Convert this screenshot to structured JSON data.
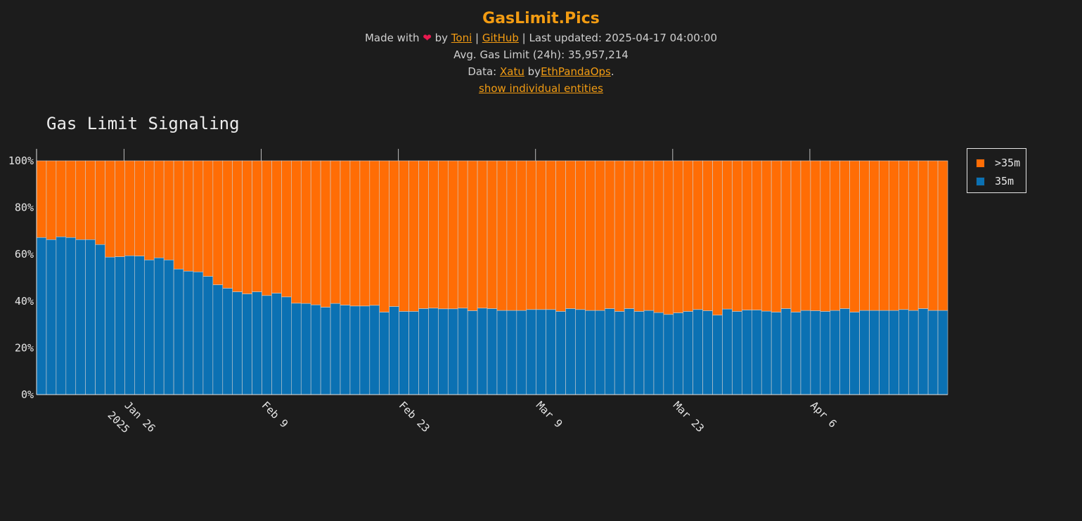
{
  "header": {
    "title": "GasLimit.Pics",
    "made_with": "Made with",
    "heart": "❤",
    "by": "by",
    "author": "Toni",
    "sep1": "|",
    "github": "GitHub",
    "last_updated": "| Last updated: 2025-04-17 04:00:00",
    "avg_label": "Avg. Gas Limit (24h): 35,957,214",
    "data_prefix": "Data:",
    "data_source": "Xatu",
    "data_by": "by",
    "data_org": "EthPandaOps",
    "data_suffix": ".",
    "toggle_link": "show individual entities"
  },
  "colors": {
    "over35m": "#ff6d05",
    "at35m": "#0b71b3",
    "background": "#1c1c1c",
    "accent": "#f39c12"
  },
  "chart_data": {
    "type": "bar",
    "stacked": true,
    "title": "Gas Limit Signaling",
    "start_date": "2025-01-17",
    "x_ticks": [
      {
        "date": "2025-01-26",
        "label": "Jan 26",
        "sub": "2025"
      },
      {
        "date": "2025-02-09",
        "label": "Feb 9",
        "sub": ""
      },
      {
        "date": "2025-02-23",
        "label": "Feb 23",
        "sub": ""
      },
      {
        "date": "2025-03-09",
        "label": "Mar 9",
        "sub": ""
      },
      {
        "date": "2025-03-23",
        "label": "Mar 23",
        "sub": ""
      },
      {
        "date": "2025-04-06",
        "label": "Apr 6",
        "sub": ""
      }
    ],
    "y_ticks": [
      "0%",
      "20%",
      "40%",
      "60%",
      "80%",
      "100%"
    ],
    "ylim": [
      0,
      100
    ],
    "legend": {
      "position": "top-right",
      "entries": [
        ">35m",
        "35m"
      ]
    },
    "series": [
      {
        "name": "35m",
        "color_key": "at35m",
        "values": [
          67.2,
          66.3,
          67.5,
          67.2,
          66.3,
          66.3,
          64.2,
          58.8,
          59.0,
          59.4,
          59.3,
          57.6,
          58.5,
          57.6,
          53.7,
          52.8,
          52.5,
          50.6,
          47.0,
          45.5,
          44.0,
          43.1,
          44.0,
          42.4,
          43.4,
          41.8,
          39.1,
          39.0,
          38.4,
          37.4,
          39.0,
          38.3,
          37.9,
          37.9,
          38.2,
          35.3,
          37.7,
          35.6,
          35.6,
          36.8,
          37.0,
          36.7,
          36.7,
          37.0,
          35.9,
          37.0,
          36.8,
          36.0,
          36.0,
          36.0,
          36.4,
          36.4,
          36.4,
          35.6,
          36.8,
          36.4,
          36.0,
          36.0,
          36.8,
          35.6,
          36.8,
          35.6,
          36.0,
          35.1,
          34.3,
          35.0,
          35.6,
          36.4,
          35.9,
          34.0,
          36.6,
          35.6,
          36.2,
          36.2,
          35.7,
          35.3,
          36.8,
          35.3,
          36.0,
          35.9,
          35.6,
          36.0,
          36.8,
          35.3,
          36.0,
          36.0,
          36.0,
          36.0,
          36.4,
          36.0,
          36.8,
          36.0,
          36.0
        ]
      },
      {
        "name": ">35m",
        "color_key": "over35m",
        "values": [
          32.8,
          33.7,
          32.5,
          32.8,
          33.7,
          33.7,
          35.8,
          41.2,
          41.0,
          40.6,
          40.7,
          42.4,
          41.5,
          42.4,
          46.3,
          47.2,
          47.5,
          49.4,
          53.0,
          54.5,
          56.0,
          56.9,
          56.0,
          57.6,
          56.6,
          58.2,
          60.9,
          61.0,
          61.6,
          62.6,
          61.0,
          61.7,
          62.1,
          62.1,
          61.8,
          64.7,
          62.3,
          64.4,
          64.4,
          63.2,
          63.0,
          63.3,
          63.3,
          63.0,
          64.1,
          63.0,
          63.2,
          64.0,
          64.0,
          64.0,
          63.6,
          63.6,
          63.6,
          64.4,
          63.2,
          63.6,
          64.0,
          64.0,
          63.2,
          64.4,
          63.2,
          64.4,
          64.0,
          64.9,
          65.7,
          65.0,
          64.4,
          63.6,
          64.1,
          66.0,
          63.4,
          64.4,
          63.8,
          63.8,
          64.3,
          64.7,
          63.2,
          64.7,
          64.0,
          64.1,
          64.4,
          64.0,
          63.2,
          64.7,
          64.0,
          64.0,
          64.0,
          64.0,
          63.6,
          64.0,
          63.2,
          64.0,
          64.0
        ]
      }
    ]
  }
}
